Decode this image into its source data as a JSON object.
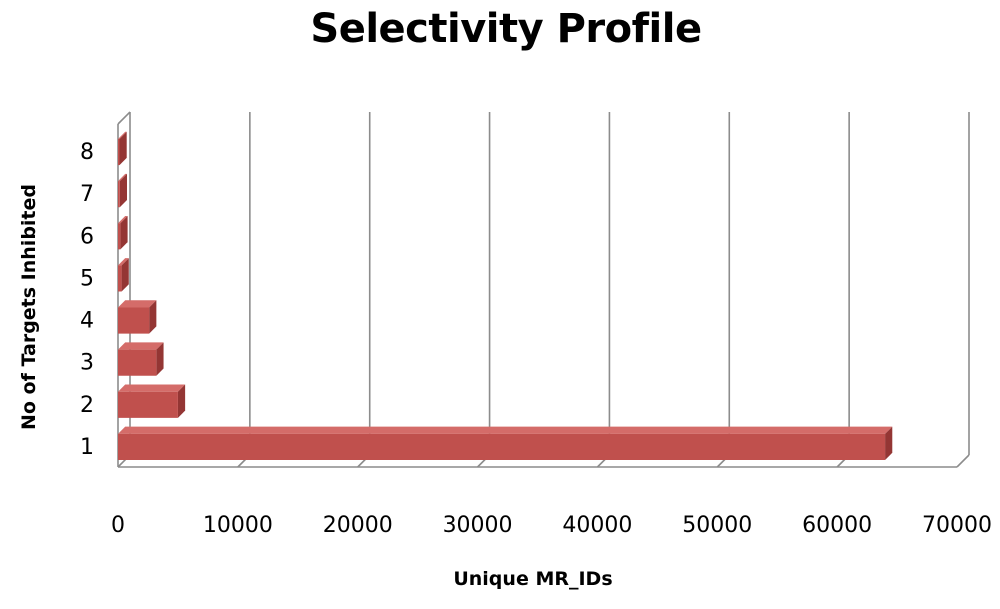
{
  "chart_data": {
    "type": "bar",
    "orientation": "horizontal",
    "title": "Selectivity Profile",
    "xlabel": "Unique MR_IDs",
    "ylabel": "No of Targets Inhibited",
    "categories": [
      "1",
      "2",
      "3",
      "4",
      "5",
      "6",
      "7",
      "8"
    ],
    "values": [
      64000,
      5000,
      3200,
      2600,
      300,
      200,
      150,
      100
    ],
    "xlim": [
      0,
      70000
    ],
    "x_ticks": [
      "0",
      "10000",
      "20000",
      "30000",
      "40000",
      "50000",
      "60000",
      "70000"
    ],
    "grid": true,
    "legend": "none",
    "bar_color": "#c0504d",
    "bar_top_color": "#d46c69",
    "bar_side_color": "#943634"
  }
}
